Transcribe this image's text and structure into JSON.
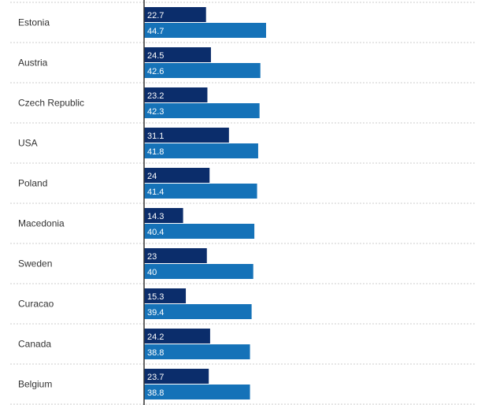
{
  "chart_data": {
    "type": "bar",
    "orientation": "horizontal",
    "categories": [
      "Estonia",
      "Austria",
      "Czech Republic",
      "USA",
      "Poland",
      "Macedonia",
      "Sweden",
      "Curacao",
      "Canada",
      "Belgium"
    ],
    "series": [
      {
        "values": [
          22.7,
          24.5,
          23.2,
          31.1,
          24,
          14.3,
          23,
          15.3,
          24.2,
          23.7
        ],
        "color": "#0b2d6b"
      },
      {
        "values": [
          44.7,
          42.6,
          42.3,
          41.8,
          41.4,
          40.4,
          40,
          39.4,
          38.8,
          38.8
        ],
        "color": "#1572b8"
      }
    ],
    "xlim": [
      0,
      44.7
    ],
    "grid": false,
    "legend": "none"
  }
}
